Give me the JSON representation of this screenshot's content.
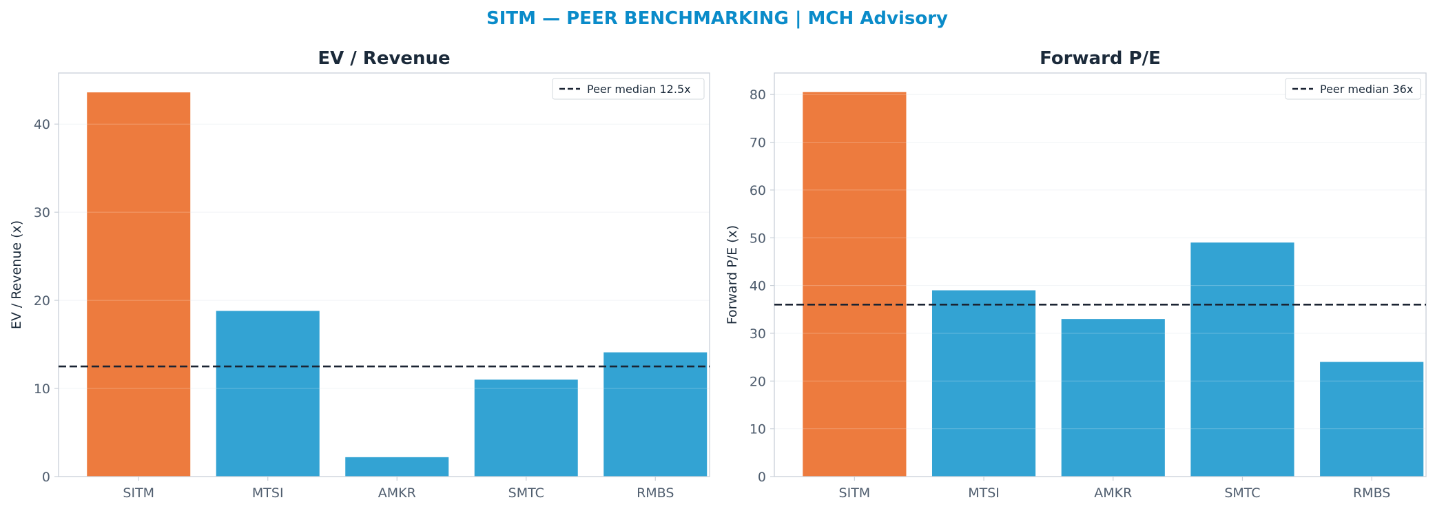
{
  "suptitle": "SITM — PEER BENCHMARKING | MCH Advisory",
  "colors": {
    "title": "#0a8bc9",
    "highlight": "#ed7b3e",
    "peer": "#33a3d3",
    "median_line": "#1b2433",
    "axis": "#c9d0d8",
    "grid": "#eef1f4"
  },
  "chart_data": [
    {
      "type": "bar",
      "title": "EV / Revenue",
      "ylabel": "EV / Revenue (x)",
      "xlabel": "",
      "categories": [
        "SITM",
        "MTSI",
        "AMKR",
        "SMTC",
        "RMBS"
      ],
      "values": [
        43.6,
        18.8,
        2.2,
        11.0,
        14.1
      ],
      "highlight_category": "SITM",
      "ylim": [
        0,
        45.8
      ],
      "yticks": [
        0,
        10,
        20,
        30,
        40
      ],
      "grid": true,
      "reference_line": {
        "value": 12.5,
        "label": "Peer median 12.5x",
        "style": "dashed"
      },
      "legend_position": "top-right"
    },
    {
      "type": "bar",
      "title": "Forward P/E",
      "ylabel": "Forward P/E (x)",
      "xlabel": "",
      "categories": [
        "SITM",
        "MTSI",
        "AMKR",
        "SMTC",
        "RMBS"
      ],
      "values": [
        80.5,
        39.0,
        33.0,
        49.0,
        24.0
      ],
      "highlight_category": "SITM",
      "ylim": [
        0,
        84.5
      ],
      "yticks": [
        0,
        10,
        20,
        30,
        40,
        50,
        60,
        70,
        80
      ],
      "grid": true,
      "reference_line": {
        "value": 36,
        "label": "Peer median 36x",
        "style": "dashed"
      },
      "legend_position": "top-right"
    }
  ]
}
